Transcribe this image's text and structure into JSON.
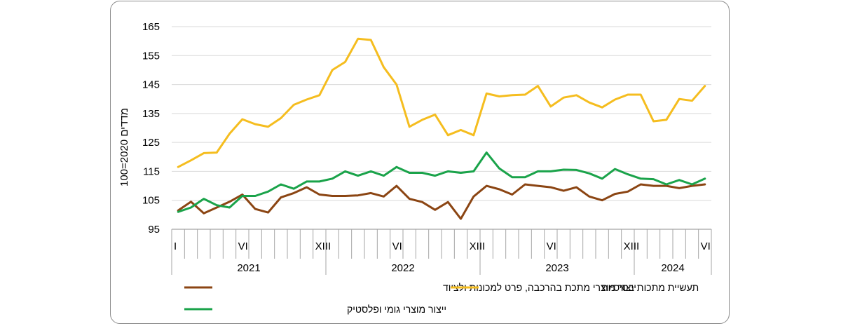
{
  "chart_data": {
    "type": "line",
    "ylabel": "מדדים 2020=100",
    "ylim": [
      95,
      165
    ],
    "yticks": [
      95,
      105,
      115,
      125,
      135,
      145,
      155,
      165
    ],
    "grid": "horizontal",
    "month_labels": [
      {
        "index": 0,
        "label": "I"
      },
      {
        "index": 5,
        "label": "VI"
      },
      {
        "index": 11,
        "label": "XII"
      },
      {
        "index": 12,
        "label": "I"
      },
      {
        "index": 17,
        "label": "VI"
      },
      {
        "index": 23,
        "label": "XII"
      },
      {
        "index": 24,
        "label": "I"
      },
      {
        "index": 29,
        "label": "VI"
      },
      {
        "index": 35,
        "label": "XII"
      },
      {
        "index": 36,
        "label": "I"
      },
      {
        "index": 41,
        "label": "VI"
      }
    ],
    "years": [
      {
        "label": "2021",
        "start": 0,
        "count": 12
      },
      {
        "label": "2022",
        "start": 12,
        "count": 12
      },
      {
        "label": "2023",
        "start": 24,
        "count": 12
      },
      {
        "label": "2024",
        "start": 36,
        "count": 6
      }
    ],
    "legend_position": "bottom",
    "series": [
      {
        "name": "ייצור מוצרי מתכת בהרכבה, פרט למכונות ולציוד",
        "color": "#8B4513",
        "values": [
          101.5,
          104.5,
          100.5,
          102.5,
          104.5,
          107,
          102,
          100.8,
          106,
          107.5,
          109.5,
          107,
          106.5,
          106.5,
          106.7,
          107.5,
          106.3,
          110,
          105.5,
          104.4,
          101.7,
          104.4,
          98.6,
          106.3,
          110,
          108.8,
          107,
          110.5,
          110,
          109.5,
          108.3,
          109.5,
          106.3,
          105,
          107.2,
          108,
          110.5,
          110,
          110,
          109.2,
          110,
          110.5
        ]
      },
      {
        "name": "תעשיית מתכות בסיסיות",
        "color": "#F5BD1F",
        "values": [
          116.5,
          118.8,
          121.3,
          121.5,
          128,
          133,
          131.3,
          130.4,
          133.4,
          138,
          139.8,
          141.3,
          150,
          152.8,
          160.8,
          160.4,
          151,
          145,
          130.4,
          132.8,
          134.6,
          127.5,
          129.3,
          127.5,
          141.9,
          140.9,
          141.3,
          141.5,
          144.5,
          137.4,
          140.5,
          141.3,
          138.8,
          137.1,
          139.8,
          141.5,
          141.5,
          132.3,
          132.8,
          140,
          139.4,
          144.5
        ]
      },
      {
        "name": "ייצור מוצרי גומי ופלסטיק",
        "color": "#1AA34A",
        "values": [
          101,
          102.5,
          105.5,
          103.3,
          102.5,
          106.5,
          106.5,
          108,
          110.5,
          109,
          111.5,
          111.5,
          112.5,
          115,
          113.5,
          115,
          113.5,
          116.5,
          114.5,
          114.5,
          113.5,
          115,
          114.5,
          115,
          121.5,
          116,
          113,
          113,
          115,
          115,
          115.6,
          115.5,
          114.3,
          112.5,
          115.8,
          114,
          112.5,
          112.3,
          110.5,
          112,
          110.5,
          112.5
        ]
      }
    ]
  }
}
